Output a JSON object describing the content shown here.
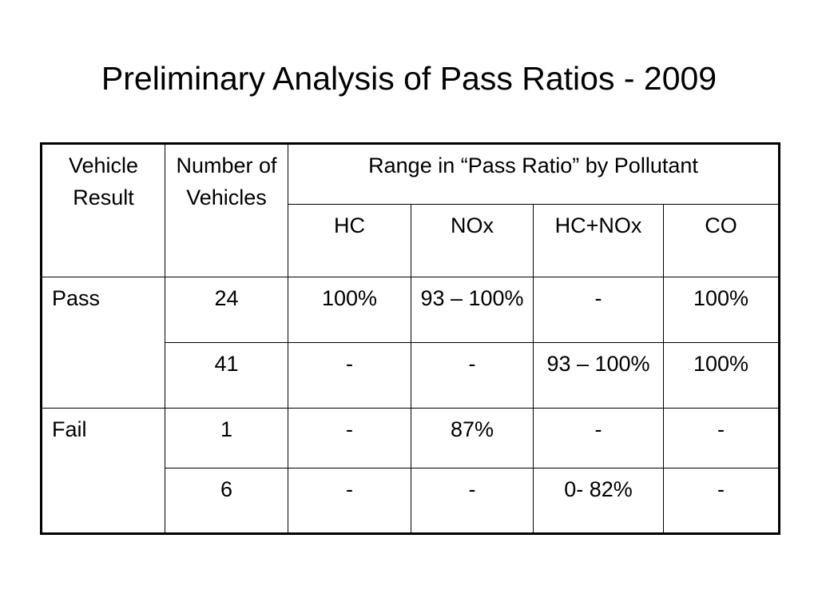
{
  "title": "Preliminary Analysis of Pass Ratios - 2009",
  "table": {
    "header": {
      "vehicle_result": "Vehicle Result",
      "number_of_vehicles": "Number of Vehicles",
      "range_group": "Range in “Pass Ratio” by Pollutant",
      "pollutants": [
        "HC",
        "NOx",
        "HC+NOx",
        "CO"
      ]
    },
    "groups": [
      {
        "result": "Pass",
        "rows": [
          {
            "count": "24",
            "hc": "100%",
            "nox": "93 – 100%",
            "hcnox": "-",
            "co": "100%"
          },
          {
            "count": "41",
            "hc": "-",
            "nox": "-",
            "hcnox": "93 – 100%",
            "co": "100%"
          }
        ]
      },
      {
        "result": "Fail",
        "rows": [
          {
            "count": "1",
            "hc": "-",
            "nox": "87%",
            "hcnox": "-",
            "co": "-"
          },
          {
            "count": "6",
            "hc": "-",
            "nox": "-",
            "hcnox": "0- 82%",
            "co": "-"
          }
        ]
      }
    ]
  }
}
